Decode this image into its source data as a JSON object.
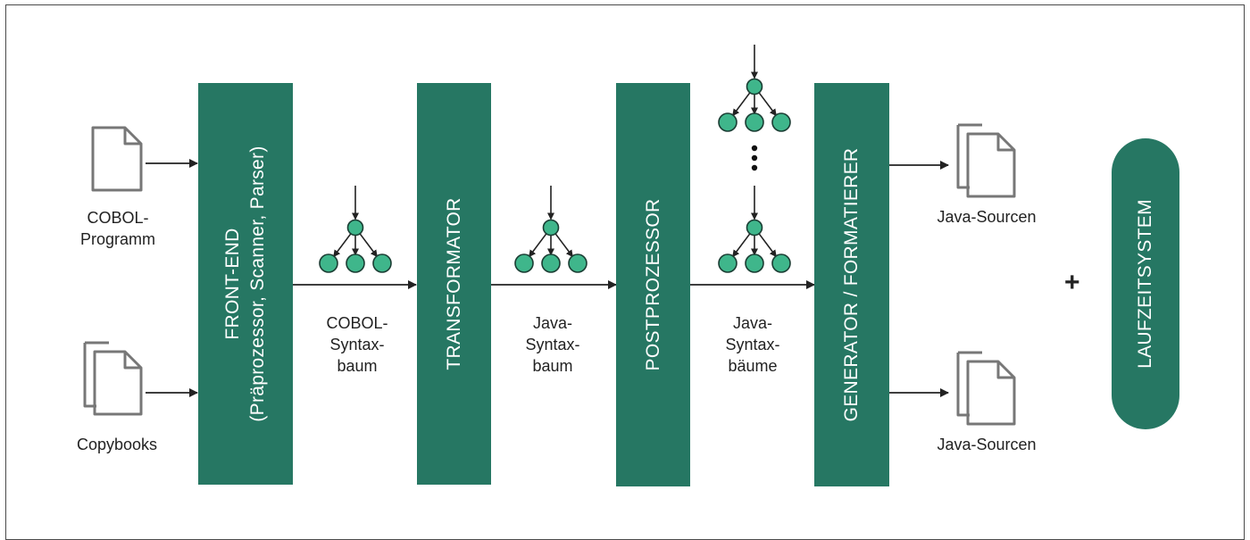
{
  "inputs": {
    "cobol_program": [
      "COBOL-",
      "Programm"
    ],
    "copybooks": "Copybooks"
  },
  "stages": {
    "front_end_title": "FRONT-END",
    "front_end_sub": "(Präprozessor, Scanner, Parser)",
    "transformator": "TRANSFORMATOR",
    "postprozessor": "POSTPROZESSOR",
    "generator": "GENERATOR / FORMATIERER"
  },
  "trees": {
    "cobol": [
      "COBOL-",
      "Syntax-",
      "baum"
    ],
    "java": [
      "Java-",
      "Syntax-",
      "baum"
    ],
    "java_multi": [
      "Java-",
      "Syntax-",
      "bäume"
    ]
  },
  "outputs": {
    "java_sources_1": "Java-Sourcen",
    "java_sources_2": "Java-Sourcen"
  },
  "plus": "+",
  "runtime": "LAUFZEITSYSTEM",
  "colors": {
    "stage": "#267763",
    "node": "#3fb68b",
    "line": "#222222",
    "doc": "#777777"
  }
}
